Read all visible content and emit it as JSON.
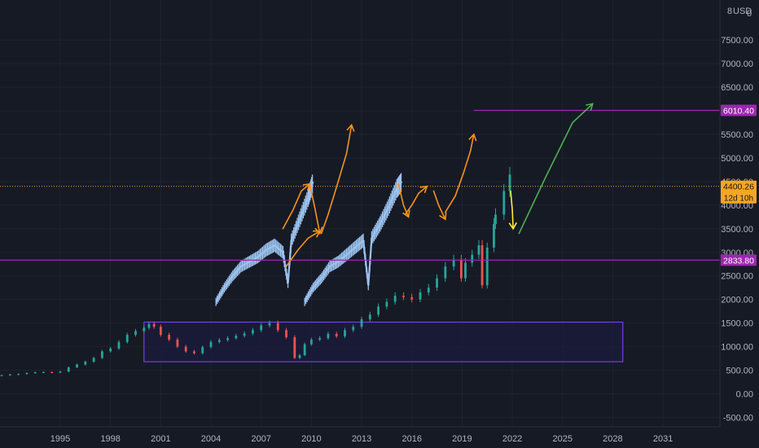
{
  "header": {
    "currency": "USD",
    "menu_glyph": "8",
    "scale_glyph": "0"
  },
  "colors": {
    "background": "#161a25",
    "grid": "#1f2331",
    "candle_up": "#26a69a",
    "candle_down": "#ef5350",
    "overlay_bars": "#9cc3ef",
    "horizontal_line": "#9c27b0",
    "price_line": "#f5a623",
    "orange_arrow": "#f7931a",
    "yellow_arrow": "#ffeb3b",
    "green_arrow": "#4caf50",
    "range_box": "#7c3aed",
    "range_fill": "#1a1c3a"
  },
  "chart_data": {
    "type": "line",
    "title": "",
    "xlabel": "",
    "ylabel": "",
    "ylim": [
      -700,
      8350
    ],
    "xlim": [
      1991.4,
      2034.4
    ],
    "y_ticks": [
      "-500.00",
      "0.00",
      "500.00",
      "1000.00",
      "1500.00",
      "2000.00",
      "2500.00",
      "3000.00",
      "3500.00",
      "4000.00",
      "4500.00",
      "5000.00",
      "5500.00",
      "6000.00",
      "6500.00",
      "7000.00",
      "7500.00"
    ],
    "x_ticks": [
      "1995",
      "1998",
      "2001",
      "2004",
      "2007",
      "2010",
      "2013",
      "2016",
      "2019",
      "2022",
      "2025",
      "2028",
      "2031"
    ],
    "series": [
      {
        "type": "candlestick",
        "x": [
          1991.5,
          1992,
          1992.5,
          1993,
          1993.5,
          1994,
          1994.5,
          1995,
          1995.5,
          1996,
          1996.5,
          1997,
          1997.5,
          1998,
          1998.5,
          1999,
          1999.5,
          2000,
          2000.3,
          2000.6,
          2001,
          2001.5,
          2002,
          2002.5,
          2003,
          2003.5,
          2004,
          2004.5,
          2005,
          2005.5,
          2006,
          2006.5,
          2007,
          2007.5,
          2008,
          2008.5,
          2009,
          2009.3,
          2009.6,
          2010,
          2010.5,
          2011,
          2011.5,
          2012,
          2012.5,
          2013,
          2013.5,
          2014,
          2014.5,
          2015,
          2015.5,
          2016,
          2016.5,
          2017,
          2017.5,
          2018,
          2018.5,
          2018.95,
          2019.2,
          2019.6,
          2020,
          2020.2,
          2020.5,
          2020.9,
          2021,
          2021.5,
          2021.85
        ],
        "close": [
          395,
          410,
          420,
          440,
          455,
          460,
          455,
          470,
          560,
          620,
          680,
          760,
          900,
          960,
          1100,
          1250,
          1330,
          1400,
          1480,
          1420,
          1250,
          1150,
          1000,
          900,
          860,
          990,
          1100,
          1140,
          1180,
          1230,
          1280,
          1350,
          1450,
          1500,
          1350,
          1200,
          760,
          820,
          1050,
          1150,
          1180,
          1270,
          1220,
          1350,
          1420,
          1580,
          1680,
          1850,
          1950,
          2080,
          2050,
          2000,
          2150,
          2250,
          2450,
          2700,
          2850,
          2450,
          2780,
          2950,
          3150,
          2300,
          3100,
          3600,
          3800,
          4300,
          4650
        ]
      },
      {
        "name": "",
        "type": "overlay_bars_1",
        "x": [
          2004.3,
          2004.8,
          2005.3,
          2005.8,
          2006.3,
          2006.8,
          2007.3,
          2007.8,
          2008.3,
          2008.6,
          2008.8,
          2009.3,
          2009.8,
          2010.1
        ],
        "y": [
          1950,
          2250,
          2500,
          2700,
          2800,
          2900,
          3050,
          3150,
          3000,
          2350,
          3250,
          3700,
          4150,
          4500
        ]
      },
      {
        "name": "",
        "type": "overlay_bars_2",
        "x": [
          2009.6,
          2010.1,
          2010.6,
          2011.1,
          2011.6,
          2012.1,
          2012.6,
          2013.1,
          2013.4,
          2013.6,
          2014.1,
          2014.6,
          2015.1,
          2015.4
        ],
        "y": [
          1950,
          2250,
          2450,
          2700,
          2800,
          2950,
          3100,
          3250,
          2300,
          3300,
          3600,
          3950,
          4350,
          4500
        ]
      }
    ],
    "horizontal_lines": [
      {
        "value": 6010.4,
        "label": "6010.40",
        "x_start": 2019.7
      },
      {
        "value": 4400.26,
        "label": "4400.26",
        "sublabel": "12d 10h",
        "dashed": true
      },
      {
        "value": 2833.8,
        "label": "2833.80"
      }
    ],
    "range_box": {
      "x0": 2000.0,
      "x1": 2028.6,
      "y0": 680,
      "y1": 1520
    },
    "arrows": [
      {
        "color": "orange",
        "points": [
          [
            2008.3,
            3500
          ],
          [
            2008.9,
            3900
          ],
          [
            2009.4,
            4300
          ],
          [
            2009.9,
            4450
          ]
        ]
      },
      {
        "color": "orange",
        "points": [
          [
            2009.9,
            4450
          ],
          [
            2010.2,
            3950
          ],
          [
            2010.5,
            3400
          ]
        ]
      },
      {
        "color": "orange",
        "points": [
          [
            2008.5,
            2700
          ],
          [
            2009.2,
            3050
          ],
          [
            2009.8,
            3300
          ],
          [
            2010.5,
            3450
          ]
        ]
      },
      {
        "color": "orange",
        "points": [
          [
            2010.6,
            3400
          ],
          [
            2011.0,
            3800
          ],
          [
            2011.6,
            4500
          ],
          [
            2012.1,
            5100
          ],
          [
            2012.4,
            5700
          ]
        ]
      },
      {
        "color": "orange",
        "points": [
          [
            2015.2,
            4450
          ],
          [
            2015.5,
            4000
          ],
          [
            2015.8,
            3750
          ]
        ]
      },
      {
        "color": "orange",
        "points": [
          [
            2015.6,
            3800
          ],
          [
            2016.0,
            4000
          ],
          [
            2016.4,
            4250
          ],
          [
            2016.9,
            4400
          ]
        ]
      },
      {
        "color": "orange",
        "points": [
          [
            2017.3,
            4300
          ],
          [
            2017.6,
            4000
          ],
          [
            2018.0,
            3700
          ]
        ]
      },
      {
        "color": "orange",
        "points": [
          [
            2018.0,
            3850
          ],
          [
            2018.6,
            4200
          ],
          [
            2019.1,
            4700
          ],
          [
            2019.5,
            5150
          ],
          [
            2019.7,
            5500
          ]
        ]
      },
      {
        "color": "yellow",
        "points": [
          [
            2021.9,
            4300
          ],
          [
            2022.0,
            3900
          ],
          [
            2022.05,
            3500
          ]
        ]
      },
      {
        "color": "green",
        "points": [
          [
            2022.4,
            3400
          ],
          [
            2024.0,
            4600
          ],
          [
            2025.6,
            5750
          ],
          [
            2026.8,
            6150
          ]
        ]
      }
    ]
  }
}
